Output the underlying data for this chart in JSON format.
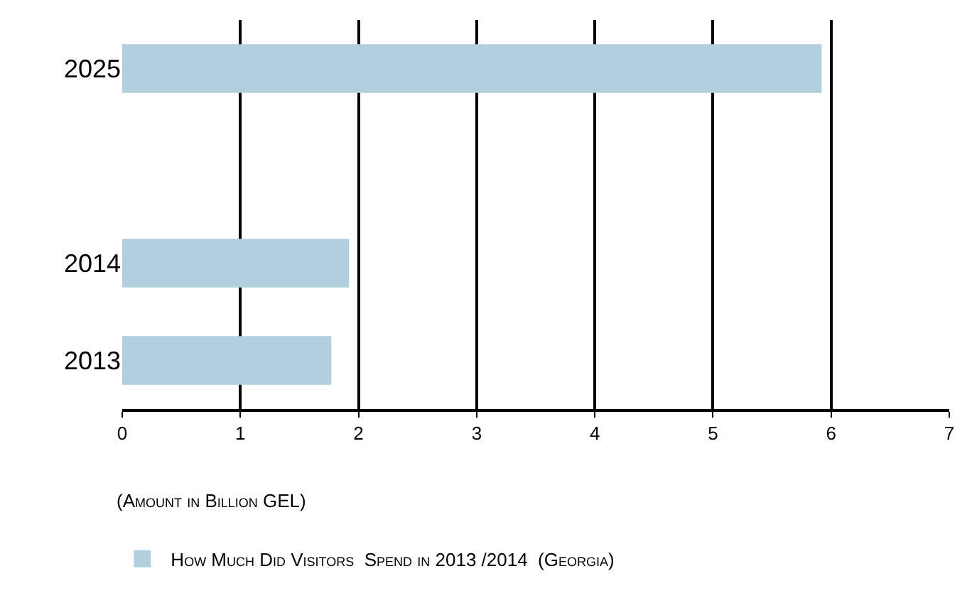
{
  "chart_data": {
    "type": "bar",
    "orientation": "horizontal",
    "categories": [
      "2025",
      null,
      "2014",
      "2013"
    ],
    "series": [
      {
        "name": "How Much Did Visitors  Spend in 2013 /2014  (Georgia)",
        "color": "#b1cfdf",
        "values": [
          5.92,
          null,
          1.92,
          1.77
        ]
      }
    ],
    "xlabel": "(Amount in Billion GEL)",
    "xlim": [
      0,
      7
    ],
    "xticks": [
      0,
      1,
      2,
      3,
      4,
      5,
      6,
      7
    ],
    "grid": "x",
    "legend": "bottom left"
  }
}
